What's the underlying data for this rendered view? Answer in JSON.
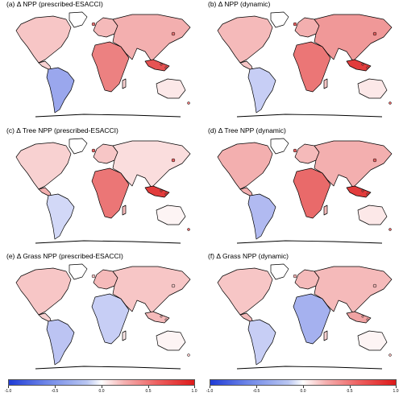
{
  "panels": [
    {
      "title": "(a) Δ NPP (prescribed-ESACCI)",
      "pattern": "npp_presc"
    },
    {
      "title": "(b) Δ NPP (dynamic)",
      "pattern": "npp_dyn"
    },
    {
      "title": "(c) Δ Tree NPP (prescribed-ESACCI)",
      "pattern": "tree_presc"
    },
    {
      "title": "(d) Δ Tree NPP (dynamic)",
      "pattern": "tree_dyn"
    },
    {
      "title": "(e) Δ Grass NPP (prescribed-ESACCI)",
      "pattern": "grass_presc"
    },
    {
      "title": "(f) Δ Grass NPP (dynamic)",
      "pattern": "grass_dyn"
    }
  ],
  "colorbars": [
    {
      "ticks": [
        "-1.0",
        "-0.5",
        "0.0",
        "0.5",
        "1.0"
      ]
    },
    {
      "ticks": [
        "-1.0",
        "-0.5",
        "0.0",
        "0.5",
        "1.0"
      ]
    }
  ],
  "colors": {
    "strong_negative": "#1f3bd6",
    "weak_negative": "#b9c6f2",
    "neutral": "#ffffff",
    "weak_positive": "#f5b2b2",
    "strong_positive": "#dd1a1a",
    "coastline": "#000000"
  }
}
